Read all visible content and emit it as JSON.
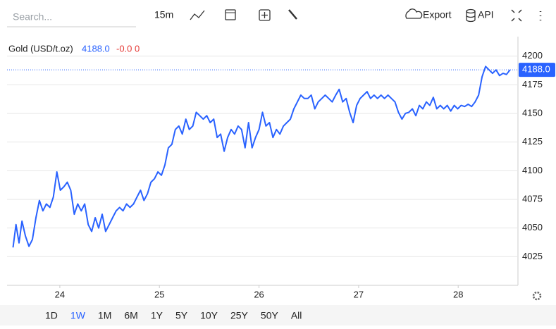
{
  "toolbar": {
    "search_placeholder": "Search...",
    "interval": "15m",
    "export": "Export",
    "api": "API"
  },
  "range_buttons": [
    "1D",
    "1W",
    "1M",
    "6M",
    "1Y",
    "5Y",
    "10Y",
    "25Y",
    "50Y",
    "All"
  ],
  "active_range_index": 1,
  "chart_data": {
    "type": "line",
    "legend_value": "4188.0",
    "legend_change": "-0.0 0",
    "last_price": {
      "value": 4188,
      "label": "4188.0"
    },
    "x": [
      23.53,
      23.56,
      23.59,
      23.62,
      23.655,
      23.69,
      23.725,
      23.76,
      23.795,
      23.83,
      23.865,
      23.9,
      23.935,
      23.97,
      24.005,
      24.04,
      24.075,
      24.11,
      24.145,
      24.18,
      24.215,
      24.25,
      24.285,
      24.32,
      24.355,
      24.39,
      24.425,
      24.46,
      24.495,
      24.53,
      24.565,
      24.6,
      24.635,
      24.67,
      24.705,
      24.74,
      24.775,
      24.81,
      24.845,
      24.88,
      24.915,
      24.95,
      24.985,
      25.02,
      25.055,
      25.09,
      25.125,
      25.16,
      25.195,
      25.23,
      25.265,
      25.3,
      25.335,
      25.37,
      25.405,
      25.44,
      25.475,
      25.51,
      25.545,
      25.58,
      25.615,
      25.65,
      25.685,
      25.72,
      25.755,
      25.79,
      25.825,
      25.86,
      25.895,
      25.93,
      25.965,
      26,
      26.035,
      26.07,
      26.105,
      26.14,
      26.175,
      26.21,
      26.245,
      26.28,
      26.315,
      26.35,
      26.385,
      26.42,
      26.455,
      26.49,
      26.525,
      26.56,
      26.595,
      26.63,
      26.665,
      26.7,
      26.735,
      26.77,
      26.805,
      26.84,
      26.875,
      26.91,
      26.945,
      26.98,
      27.015,
      27.05,
      27.085,
      27.12,
      27.155,
      27.19,
      27.225,
      27.26,
      27.295,
      27.33,
      27.365,
      27.4,
      27.435,
      27.47,
      27.505,
      27.54,
      27.575,
      27.61,
      27.645,
      27.68,
      27.715,
      27.75,
      27.785,
      27.82,
      27.855,
      27.89,
      27.925,
      27.96,
      27.995,
      28.03,
      28.065,
      28.1,
      28.135,
      28.17,
      28.205,
      28.24,
      28.275,
      28.31,
      28.345,
      28.38,
      28.415,
      28.45,
      28.485,
      28.52
    ],
    "series": [
      {
        "name": "Gold (USD/t.oz)",
        "color": "#2962ff",
        "values": [
          4033,
          4053,
          4037,
          4056,
          4043,
          4034,
          4040,
          4059,
          4074,
          4065,
          4071,
          4068,
          4077,
          4099,
          4083,
          4086,
          4090,
          4083,
          4062,
          4071,
          4065,
          4071,
          4053,
          4047,
          4059,
          4050,
          4062,
          4047,
          4053,
          4059,
          4065,
          4068,
          4065,
          4071,
          4068,
          4071,
          4077,
          4083,
          4074,
          4080,
          4090,
          4093,
          4099,
          4096,
          4105,
          4120,
          4123,
          4136,
          4139,
          4132,
          4145,
          4136,
          4139,
          4151,
          4148,
          4145,
          4148,
          4142,
          4145,
          4129,
          4132,
          4117,
          4129,
          4136,
          4132,
          4139,
          4136,
          4120,
          4142,
          4120,
          4129,
          4136,
          4151,
          4139,
          4142,
          4129,
          4136,
          4132,
          4139,
          4142,
          4145,
          4154,
          4160,
          4166,
          4163,
          4163,
          4166,
          4154,
          4160,
          4163,
          4166,
          4163,
          4160,
          4166,
          4171,
          4160,
          4163,
          4151,
          4142,
          4157,
          4163,
          4166,
          4169,
          4163,
          4166,
          4163,
          4166,
          4163,
          4166,
          4163,
          4160,
          4151,
          4145,
          4150,
          4151,
          4154,
          4148,
          4157,
          4154,
          4160,
          4157,
          4164,
          4154,
          4157,
          4154,
          4157,
          4152,
          4157,
          4154,
          4157,
          4156,
          4158,
          4156,
          4160,
          4166,
          4182,
          4191,
          4188,
          4185,
          4188,
          4183,
          4185,
          4184,
          4188
        ]
      }
    ],
    "xlim": [
      23.47,
      28.6
    ],
    "xticks": [
      24,
      25,
      26,
      27,
      28
    ],
    "ylim": [
      4000,
      4217
    ],
    "yticks": [
      4025,
      4050,
      4075,
      4100,
      4125,
      4150,
      4175,
      4200
    ],
    "grid": true
  }
}
